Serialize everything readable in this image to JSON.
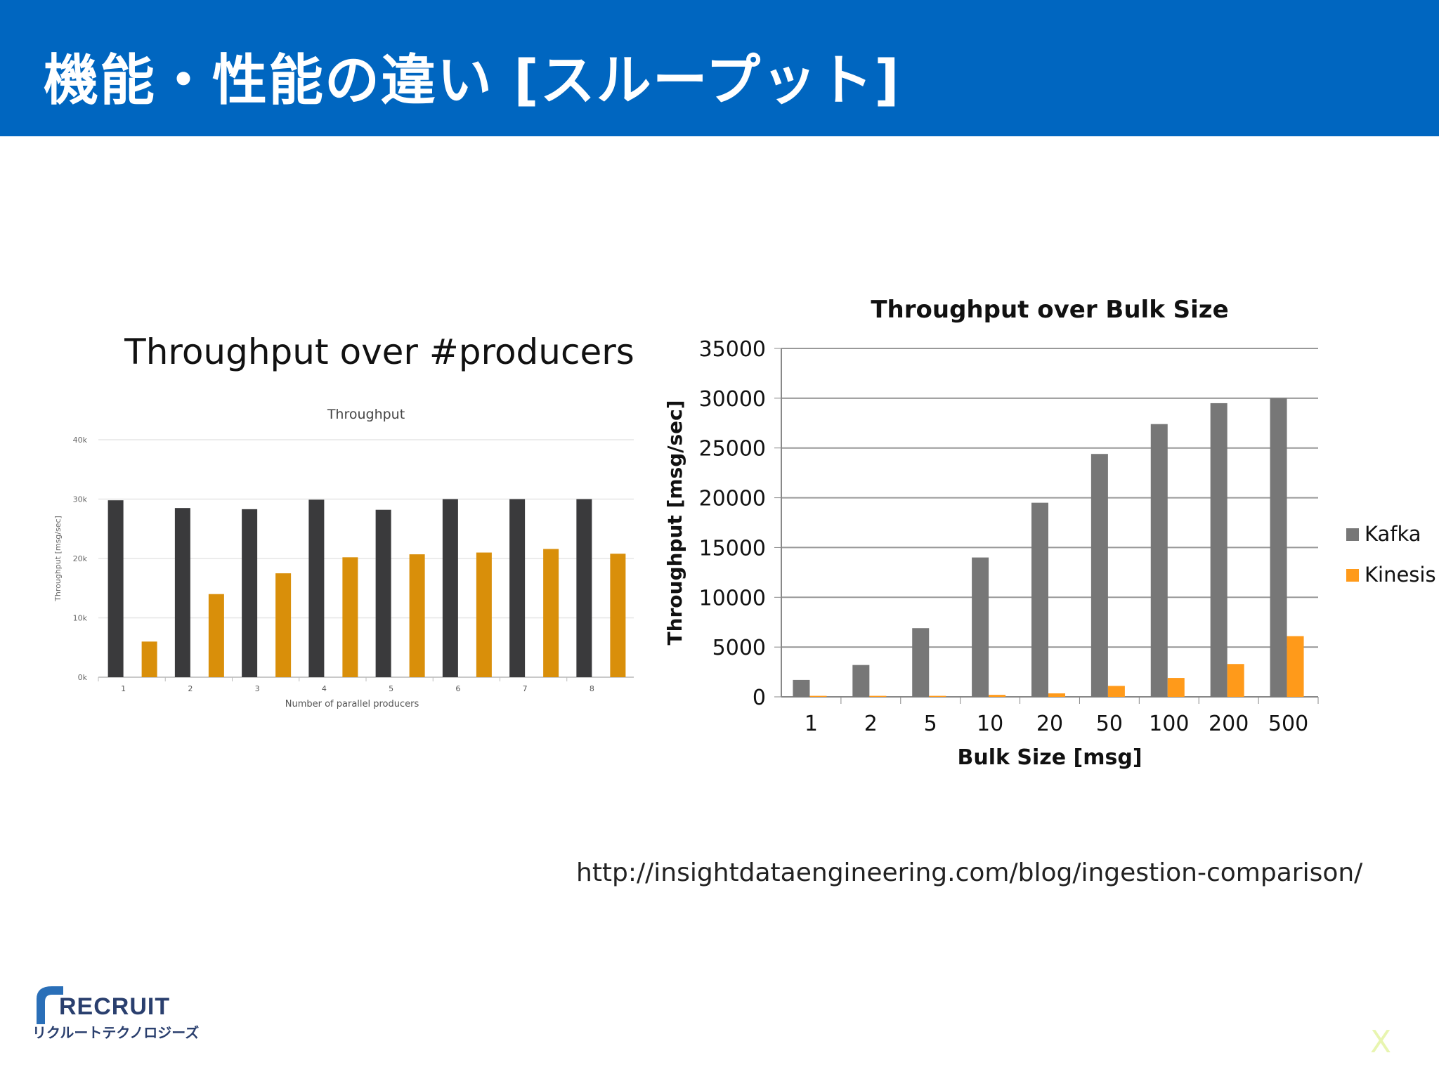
{
  "header": {
    "title": "機能・性能の違い [スループット]"
  },
  "left_chart_heading": "Throughput over #producers",
  "source_url": "http://insightdataengineering.com/blog/ingestion-comparison/",
  "logo": {
    "name": "RECRUIT",
    "subtitle": "リクルートテクノロジーズ"
  },
  "corner_mark": "X",
  "colors": {
    "header_bg": "#0066c0",
    "kafka_left": "#3a3a3c",
    "kinesis_left": "#d98f0a",
    "kafka_right": "#777777",
    "kinesis_right": "#ff9a1a"
  },
  "chart_data": [
    {
      "type": "bar",
      "title": "Throughput",
      "xlabel": "Number of parallel producers",
      "ylabel": "Throughput [msg/sec]",
      "categories": [
        "1",
        "2",
        "3",
        "4",
        "5",
        "6",
        "7",
        "8"
      ],
      "ylim": [
        0,
        40000
      ],
      "yticks": [
        0,
        10000,
        20000,
        30000,
        40000
      ],
      "ytick_labels": [
        "0k",
        "10k",
        "20k",
        "30k",
        "40k"
      ],
      "series": [
        {
          "name": "Kafka",
          "values": [
            29800,
            28500,
            28300,
            29900,
            28200,
            30000,
            30000,
            30000
          ]
        },
        {
          "name": "Kinesis",
          "values": [
            6000,
            14000,
            17500,
            20200,
            20700,
            21000,
            21600,
            20800
          ]
        }
      ]
    },
    {
      "type": "bar",
      "title": "Throughput over Bulk Size",
      "xlabel": "Bulk Size [msg]",
      "ylabel": "Throughput [msg/sec]",
      "categories": [
        "1",
        "2",
        "5",
        "10",
        "20",
        "50",
        "100",
        "200",
        "500"
      ],
      "ylim": [
        0,
        35000
      ],
      "yticks": [
        0,
        5000,
        10000,
        15000,
        20000,
        25000,
        30000,
        35000
      ],
      "ytick_labels": [
        "0",
        "5000",
        "10000",
        "15000",
        "20000",
        "25000",
        "30000",
        "35000"
      ],
      "legend": "right",
      "series": [
        {
          "name": "Kafka",
          "values": [
            1700,
            3200,
            6900,
            14000,
            19500,
            24400,
            27400,
            29500,
            30000
          ]
        },
        {
          "name": "Kinesis",
          "values": [
            100,
            100,
            100,
            200,
            350,
            1100,
            1900,
            3300,
            6100
          ]
        }
      ]
    }
  ]
}
